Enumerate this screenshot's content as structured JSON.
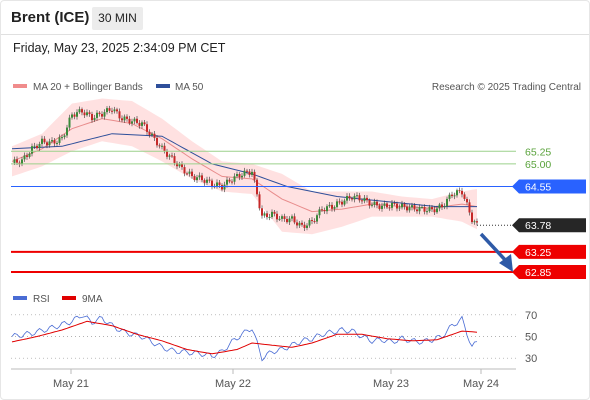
{
  "header": {
    "instrument": "Brent (ICE)",
    "timeframe": "30 MIN",
    "datetime": "Friday, May 23, 2025 2:34:09 PM CET",
    "credit": "Research © 2025 Trading Central"
  },
  "colors": {
    "up": "#3a8a3a",
    "down": "#c62828",
    "bb_fill": "#ffdcdc",
    "ma20": "#e88c8c",
    "ma50": "#2e4f9a",
    "blue_line": "#2962ff",
    "red_line": "#ee0000",
    "green_line": "#9bd18b",
    "rsi": "#4a6cd4",
    "rsi_ma": "#e00000",
    "arrow": "#2e5aa7"
  },
  "chart_data": [
    {
      "type": "candlestick",
      "legend": [
        "MA 20 + Bollinger Bands",
        "MA 50"
      ],
      "x_labels": [
        "May 21",
        "May 22",
        "May 23",
        "May 24"
      ],
      "y_range_estimated": [
        62.65,
        66.35
      ],
      "levels": [
        {
          "value": 65.25,
          "label": "65.25",
          "kind": "resistance"
        },
        {
          "value": 65.0,
          "label": "65.00",
          "kind": "resistance"
        },
        {
          "value": 64.55,
          "label": "64.55",
          "kind": "pivot"
        },
        {
          "value": 63.78,
          "label": "63.78",
          "kind": "last_price"
        },
        {
          "value": 63.25,
          "label": "63.25",
          "kind": "support"
        },
        {
          "value": 62.85,
          "label": "62.85",
          "kind": "support"
        }
      ],
      "close_path": [
        [
          0,
          65.02
        ],
        [
          4,
          65.06
        ],
        [
          8,
          65.3
        ],
        [
          12,
          65.44
        ],
        [
          16,
          65.42
        ],
        [
          20,
          65.5
        ],
        [
          24,
          65.98
        ],
        [
          28,
          66.05
        ],
        [
          32,
          65.92
        ],
        [
          36,
          66.0
        ],
        [
          40,
          66.1
        ],
        [
          44,
          65.9
        ],
        [
          48,
          65.85
        ],
        [
          52,
          65.8
        ],
        [
          56,
          65.55
        ],
        [
          60,
          65.3
        ],
        [
          64,
          65.1
        ],
        [
          68,
          64.9
        ],
        [
          72,
          64.75
        ],
        [
          76,
          64.7
        ],
        [
          80,
          64.6
        ],
        [
          84,
          64.55
        ],
        [
          88,
          64.7
        ],
        [
          92,
          64.8
        ],
        [
          96,
          64.85
        ],
        [
          100,
          63.95
        ],
        [
          104,
          64.0
        ],
        [
          108,
          63.9
        ],
        [
          112,
          63.9
        ],
        [
          116,
          63.75
        ],
        [
          120,
          63.85
        ],
        [
          124,
          64.1
        ],
        [
          128,
          64.15
        ],
        [
          132,
          64.25
        ],
        [
          136,
          64.35
        ],
        [
          140,
          64.3
        ],
        [
          144,
          64.2
        ],
        [
          148,
          64.15
        ],
        [
          152,
          64.18
        ],
        [
          156,
          64.15
        ],
        [
          160,
          64.12
        ],
        [
          164,
          64.1
        ],
        [
          168,
          64.08
        ],
        [
          172,
          64.15
        ],
        [
          176,
          64.4
        ],
        [
          180,
          64.45
        ],
        [
          184,
          63.9
        ],
        [
          186,
          63.78
        ]
      ],
      "ma20_path": [
        [
          0,
          65.05
        ],
        [
          12,
          65.3
        ],
        [
          24,
          65.7
        ],
        [
          36,
          65.9
        ],
        [
          48,
          65.8
        ],
        [
          60,
          65.5
        ],
        [
          72,
          65.1
        ],
        [
          84,
          64.75
        ],
        [
          96,
          64.7
        ],
        [
          108,
          64.3
        ],
        [
          120,
          64.05
        ],
        [
          132,
          64.1
        ],
        [
          144,
          64.2
        ],
        [
          156,
          64.15
        ],
        [
          168,
          64.12
        ],
        [
          180,
          64.2
        ],
        [
          186,
          64.15
        ]
      ],
      "bb_upper_path": [
        [
          0,
          65.35
        ],
        [
          12,
          65.6
        ],
        [
          24,
          66.2
        ],
        [
          36,
          66.3
        ],
        [
          48,
          66.25
        ],
        [
          60,
          65.9
        ],
        [
          72,
          65.45
        ],
        [
          84,
          65.05
        ],
        [
          96,
          65.0
        ],
        [
          108,
          64.8
        ],
        [
          120,
          64.45
        ],
        [
          132,
          64.45
        ],
        [
          144,
          64.45
        ],
        [
          156,
          64.35
        ],
        [
          168,
          64.3
        ],
        [
          180,
          64.45
        ],
        [
          186,
          64.5
        ]
      ],
      "bb_lower_path": [
        [
          0,
          64.75
        ],
        [
          12,
          64.95
        ],
        [
          24,
          65.25
        ],
        [
          36,
          65.45
        ],
        [
          48,
          65.35
        ],
        [
          60,
          65.05
        ],
        [
          72,
          64.7
        ],
        [
          84,
          64.45
        ],
        [
          96,
          64.4
        ],
        [
          108,
          63.65
        ],
        [
          120,
          63.6
        ],
        [
          132,
          63.75
        ],
        [
          144,
          63.95
        ],
        [
          156,
          63.95
        ],
        [
          168,
          63.95
        ],
        [
          180,
          63.85
        ],
        [
          186,
          63.7
        ]
      ],
      "ma50_path": [
        [
          0,
          65.3
        ],
        [
          20,
          65.35
        ],
        [
          40,
          65.6
        ],
        [
          60,
          65.55
        ],
        [
          80,
          65.0
        ],
        [
          96,
          64.8
        ],
        [
          110,
          64.55
        ],
        [
          130,
          64.35
        ],
        [
          150,
          64.25
        ],
        [
          170,
          64.15
        ],
        [
          186,
          64.15
        ]
      ]
    },
    {
      "type": "line",
      "legend": [
        "RSI",
        "9MA"
      ],
      "y_ticks": [
        70,
        50,
        30
      ],
      "y_range_estimated": [
        20,
        80
      ],
      "series": [
        {
          "name": "RSI",
          "points": [
            [
              0,
              50
            ],
            [
              8,
              53
            ],
            [
              16,
              58
            ],
            [
              24,
              64
            ],
            [
              28,
              70
            ],
            [
              32,
              63
            ],
            [
              36,
              67
            ],
            [
              40,
              60
            ],
            [
              44,
              55
            ],
            [
              48,
              52
            ],
            [
              52,
              50
            ],
            [
              56,
              45
            ],
            [
              60,
              40
            ],
            [
              64,
              37
            ],
            [
              68,
              36
            ],
            [
              72,
              35
            ],
            [
              76,
              34
            ],
            [
              80,
              32
            ],
            [
              84,
              36
            ],
            [
              88,
              45
            ],
            [
              92,
              52
            ],
            [
              96,
              58
            ],
            [
              100,
              30
            ],
            [
              104,
              36
            ],
            [
              108,
              38
            ],
            [
              112,
              42
            ],
            [
              116,
              46
            ],
            [
              120,
              48
            ],
            [
              124,
              52
            ],
            [
              128,
              54
            ],
            [
              132,
              56
            ],
            [
              136,
              55
            ],
            [
              140,
              50
            ],
            [
              144,
              46
            ],
            [
              148,
              47
            ],
            [
              152,
              45
            ],
            [
              156,
              48
            ],
            [
              160,
              46
            ],
            [
              164,
              45
            ],
            [
              168,
              47
            ],
            [
              172,
              50
            ],
            [
              176,
              60
            ],
            [
              180,
              66
            ],
            [
              184,
              40
            ],
            [
              186,
              45
            ]
          ]
        },
        {
          "name": "9MA",
          "points": [
            [
              0,
              45
            ],
            [
              10,
              50
            ],
            [
              20,
              56
            ],
            [
              30,
              64
            ],
            [
              40,
              60
            ],
            [
              50,
              52
            ],
            [
              60,
              46
            ],
            [
              70,
              38
            ],
            [
              80,
              34
            ],
            [
              90,
              38
            ],
            [
              96,
              44
            ],
            [
              104,
              42
            ],
            [
              112,
              40
            ],
            [
              120,
              44
            ],
            [
              130,
              52
            ],
            [
              140,
              52
            ],
            [
              150,
              48
            ],
            [
              160,
              46
            ],
            [
              170,
              47
            ],
            [
              180,
              55
            ],
            [
              186,
              54
            ]
          ]
        }
      ]
    }
  ]
}
